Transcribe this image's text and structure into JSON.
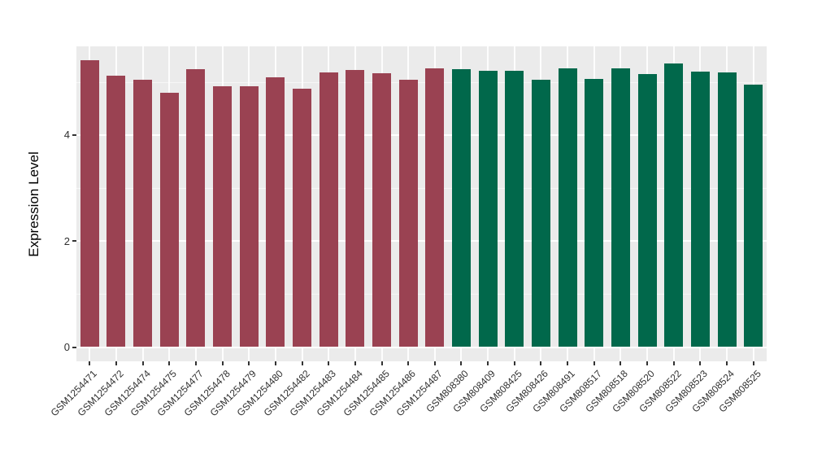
{
  "chart_data": {
    "type": "bar",
    "title": "",
    "xlabel": "",
    "ylabel": "Expression Level",
    "yticks": [
      "0",
      "2",
      "4"
    ],
    "ytick_values": [
      0,
      2,
      4
    ],
    "minor_grid_values": [
      1,
      3,
      5
    ],
    "ylim": [
      -0.27,
      5.67
    ],
    "grid": "on",
    "legend_position": "none",
    "panel_background": "#EBEBEB",
    "gridline_color": "#FFFFFF",
    "colors": {
      "group1": "#9A4252",
      "group2": "#01684B"
    },
    "categories": [
      "GSM1254471",
      "GSM1254472",
      "GSM1254474",
      "GSM1254475",
      "GSM1254477",
      "GSM1254478",
      "GSM1254479",
      "GSM1254480",
      "GSM1254482",
      "GSM1254483",
      "GSM1254484",
      "GSM1254485",
      "GSM1254486",
      "GSM1254487",
      "GSM808380",
      "GSM808409",
      "GSM808425",
      "GSM808426",
      "GSM808491",
      "GSM808517",
      "GSM808518",
      "GSM808520",
      "GSM808522",
      "GSM808523",
      "GSM808524",
      "GSM808525"
    ],
    "values": [
      5.41,
      5.12,
      5.04,
      4.79,
      5.24,
      4.92,
      4.92,
      5.09,
      4.87,
      5.17,
      5.22,
      5.16,
      5.04,
      5.26,
      5.24,
      5.2,
      5.21,
      5.04,
      5.25,
      5.05,
      5.25,
      5.15,
      5.35,
      5.19,
      5.17,
      4.95
    ],
    "bar_groups": [
      1,
      1,
      1,
      1,
      1,
      1,
      1,
      1,
      1,
      1,
      1,
      1,
      1,
      1,
      2,
      2,
      2,
      2,
      2,
      2,
      2,
      2,
      2,
      2,
      2,
      2
    ]
  }
}
